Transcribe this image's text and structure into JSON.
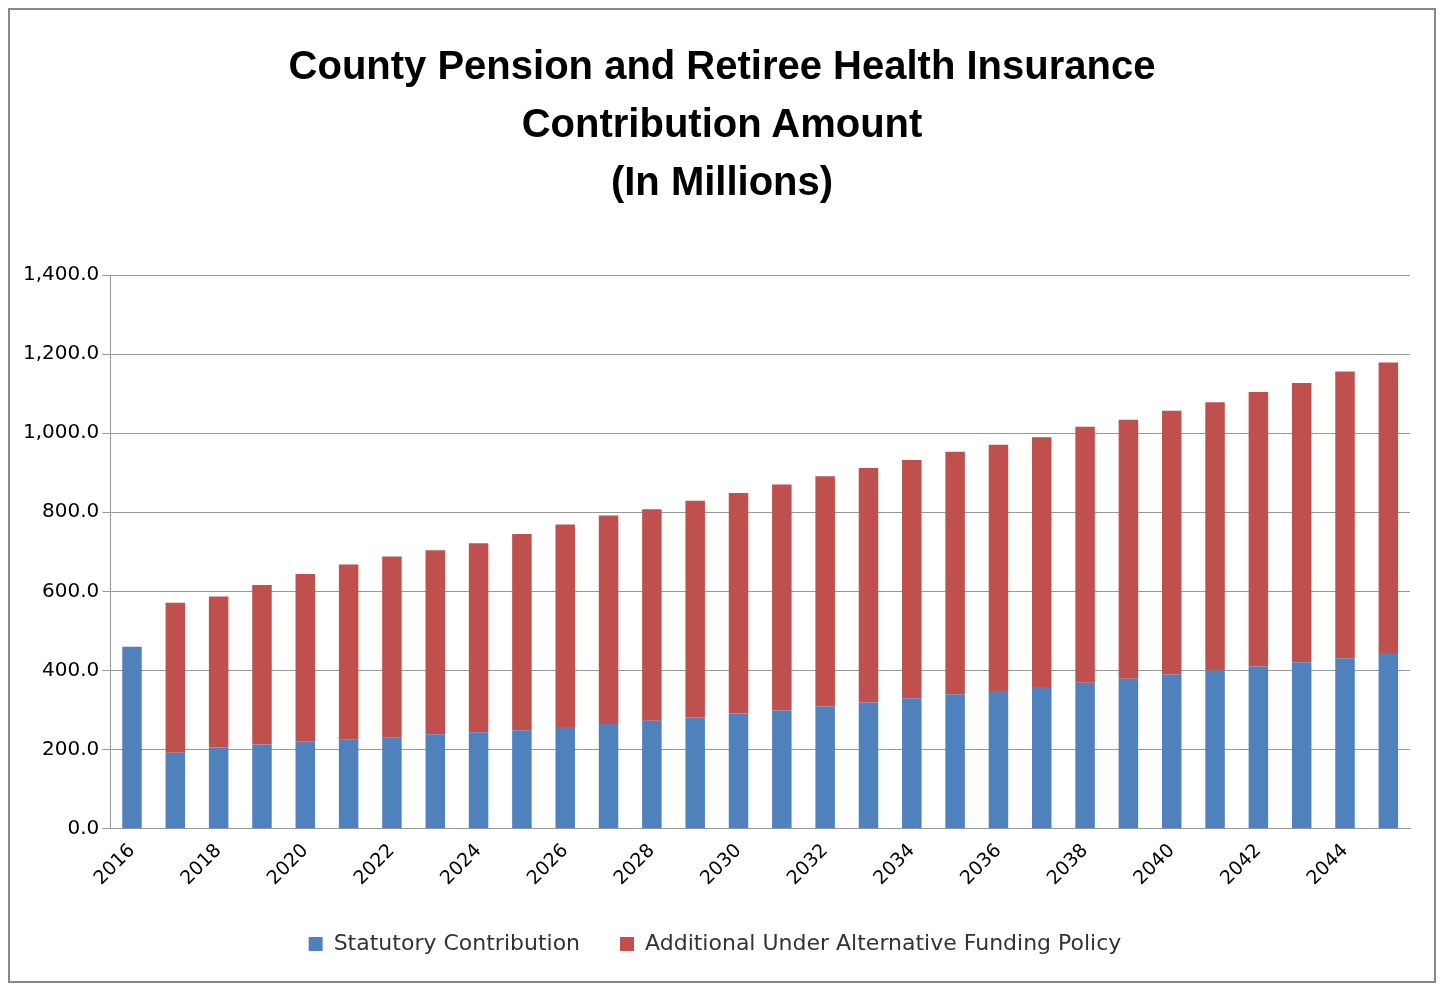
{
  "chart_data": {
    "type": "bar",
    "title": "County Pension and Retiree Health Insurance\nContribution Amount\n(In Millions)",
    "categories": [
      "2016",
      null,
      "2018",
      null,
      "2020",
      null,
      "2022",
      null,
      "2024",
      null,
      "2026",
      null,
      "2028",
      null,
      "2030",
      null,
      "2032",
      null,
      "2034",
      null,
      "2036",
      null,
      "2038",
      null,
      "2040",
      null,
      "2042",
      null,
      "2044",
      null
    ],
    "series": [
      {
        "name": "Statutory Contribution",
        "color": "#4f81bd",
        "values": [
          460,
          192,
          205,
          213,
          221,
          226,
          231,
          239,
          244,
          249,
          257,
          265,
          273,
          281,
          291,
          299,
          309,
          319,
          330,
          340,
          348,
          358,
          369,
          379,
          390,
          400,
          410,
          421,
          431,
          444
        ]
      },
      {
        "name": "Additional Under Alternative Funding Policy",
        "color": "#c0504d",
        "values": [
          null,
          379,
          382,
          403,
          423,
          442,
          457,
          465,
          478,
          496,
          512,
          527,
          535,
          548,
          558,
          571,
          582,
          593,
          602,
          613,
          623,
          632,
          647,
          655,
          667,
          678,
          694,
          706,
          725,
          735
        ]
      }
    ],
    "stacked": true,
    "ylim": [
      0,
      1400
    ],
    "yticks": [
      {
        "value": 0,
        "label": "0.0"
      },
      {
        "value": 200,
        "label": "200.0"
      },
      {
        "value": 400,
        "label": "400.0"
      },
      {
        "value": 600,
        "label": "600.0"
      },
      {
        "value": 800,
        "label": "800.0"
      },
      {
        "value": 1000,
        "label": "1,000.0"
      },
      {
        "value": 1200,
        "label": "1,200.0"
      },
      {
        "value": 1400,
        "label": "1,400.0"
      }
    ],
    "grid": "y",
    "legend": "bottom"
  }
}
